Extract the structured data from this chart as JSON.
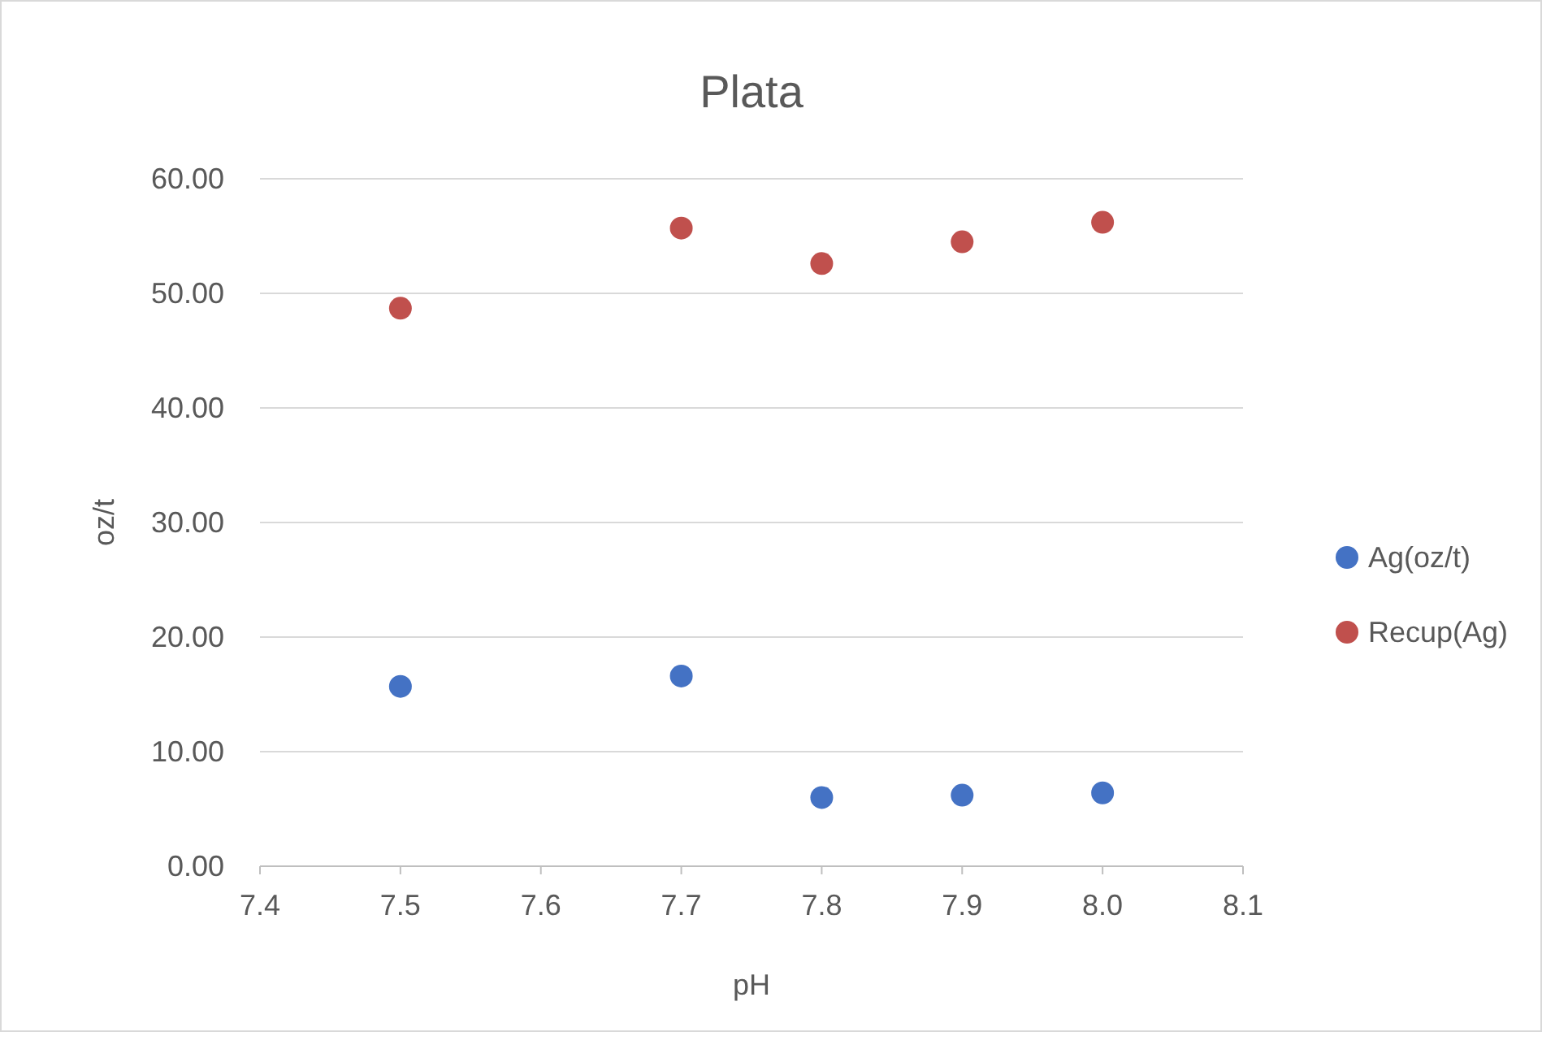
{
  "chart_data": {
    "type": "scatter",
    "title": "Plata",
    "xlabel": "pH",
    "ylabel": "oz/t",
    "x": [
      7.5,
      7.7,
      7.8,
      7.9,
      8.0
    ],
    "series": [
      {
        "name": "Ag(oz/t)",
        "color": "#4472c4",
        "values": [
          15.7,
          16.6,
          6.0,
          6.2,
          6.4
        ]
      },
      {
        "name": "Recup(Ag)",
        "color": "#c0504d",
        "values": [
          48.7,
          55.7,
          52.6,
          54.5,
          56.2
        ]
      }
    ],
    "xlim": [
      7.4,
      8.1
    ],
    "xticks": [
      {
        "value": 7.4,
        "label": "7.4"
      },
      {
        "value": 7.5,
        "label": "7.5"
      },
      {
        "value": 7.6,
        "label": "7.6"
      },
      {
        "value": 7.7,
        "label": "7.7"
      },
      {
        "value": 7.8,
        "label": "7.8"
      },
      {
        "value": 7.9,
        "label": "7.9"
      },
      {
        "value": 8.0,
        "label": "8.0"
      },
      {
        "value": 8.1,
        "label": "8.1"
      }
    ],
    "ylim": [
      0,
      60
    ],
    "yticks": [
      {
        "value": 0,
        "label": "0.00"
      },
      {
        "value": 10,
        "label": "10.00"
      },
      {
        "value": 20,
        "label": "20.00"
      },
      {
        "value": 30,
        "label": "30.00"
      },
      {
        "value": 40,
        "label": "40.00"
      },
      {
        "value": 50,
        "label": "50.00"
      },
      {
        "value": 60,
        "label": "60.00"
      }
    ],
    "grid": "y",
    "legend": "right",
    "marker": "circle"
  }
}
